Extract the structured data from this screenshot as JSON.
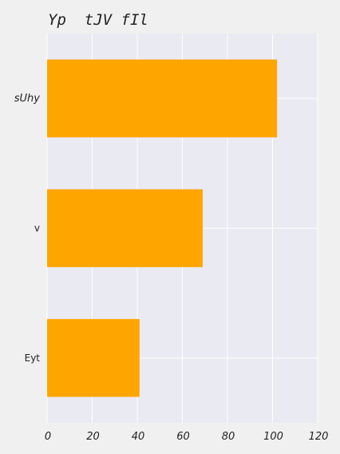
{
  "chart_data": {
    "type": "bar",
    "orientation": "horizontal",
    "title": "Yp  tJV fIl",
    "categories": [
      "sUhy",
      "v",
      "Eyt"
    ],
    "values": [
      102,
      69,
      41
    ],
    "xlim": [
      0,
      120
    ],
    "xticks": [
      "0",
      "20",
      "40",
      "60",
      "80",
      "100",
      "120"
    ],
    "xlabel": "",
    "ylabel": "",
    "grid": true,
    "legend": "none",
    "colors": {
      "bar": "#FFA500",
      "plot_bg": "#EAEAF2",
      "page_bg": "#F0F0F0",
      "grid": "#FFFFFF"
    }
  }
}
